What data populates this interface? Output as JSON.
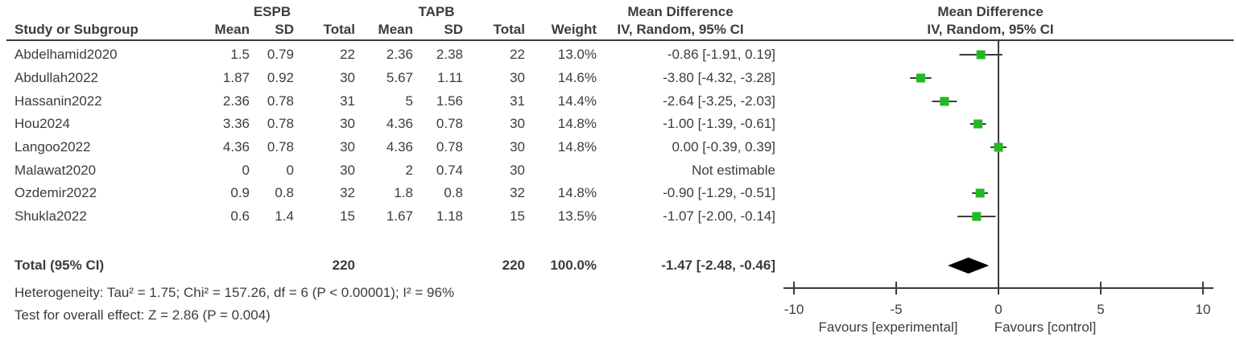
{
  "table": {
    "group_headers": {
      "espb": "ESPB",
      "tapb": "TAPB",
      "md_left": "Mean Difference",
      "md_right": "Mean Difference"
    },
    "col_headers": {
      "study": "Study or Subgroup",
      "mean": "Mean",
      "sd": "SD",
      "total": "Total",
      "weight": "Weight",
      "ci": "IV, Random, 95% CI",
      "ci_right": "IV, Random, 95% CI"
    },
    "rows": [
      {
        "study": "Abdelhamid2020",
        "mean1": "1.5",
        "sd1": "0.79",
        "total1": "22",
        "mean2": "2.36",
        "sd2": "2.38",
        "total2": "22",
        "weight": "13.0%",
        "ci": "-0.86 [-1.91, 0.19]"
      },
      {
        "study": "Abdullah2022",
        "mean1": "1.87",
        "sd1": "0.92",
        "total1": "30",
        "mean2": "5.67",
        "sd2": "1.11",
        "total2": "30",
        "weight": "14.6%",
        "ci": "-3.80 [-4.32, -3.28]"
      },
      {
        "study": "Hassanin2022",
        "mean1": "2.36",
        "sd1": "0.78",
        "total1": "31",
        "mean2": "5",
        "sd2": "1.56",
        "total2": "31",
        "weight": "14.4%",
        "ci": "-2.64 [-3.25, -2.03]"
      },
      {
        "study": "Hou2024",
        "mean1": "3.36",
        "sd1": "0.78",
        "total1": "30",
        "mean2": "4.36",
        "sd2": "0.78",
        "total2": "30",
        "weight": "14.8%",
        "ci": "-1.00 [-1.39, -0.61]"
      },
      {
        "study": "Langoo2022",
        "mean1": "4.36",
        "sd1": "0.78",
        "total1": "30",
        "mean2": "4.36",
        "sd2": "0.78",
        "total2": "30",
        "weight": "14.8%",
        "ci": "0.00 [-0.39, 0.39]"
      },
      {
        "study": "Malawat2020",
        "mean1": "0",
        "sd1": "0",
        "total1": "30",
        "mean2": "2",
        "sd2": "0.74",
        "total2": "30",
        "weight": "",
        "ci": "Not estimable"
      },
      {
        "study": "Ozdemir2022",
        "mean1": "0.9",
        "sd1": "0.8",
        "total1": "32",
        "mean2": "1.8",
        "sd2": "0.8",
        "total2": "32",
        "weight": "14.8%",
        "ci": "-0.90 [-1.29, -0.51]"
      },
      {
        "study": "Shukla2022",
        "mean1": "0.6",
        "sd1": "1.4",
        "total1": "15",
        "mean2": "1.67",
        "sd2": "1.18",
        "total2": "15",
        "weight": "13.5%",
        "ci": "-1.07 [-2.00, -0.14]"
      }
    ],
    "total_row": {
      "label": "Total (95% CI)",
      "total1": "220",
      "total2": "220",
      "weight": "100.0%",
      "ci": "-1.47 [-2.48, -0.46]"
    },
    "heterogeneity": "Heterogeneity: Tau² = 1.75; Chi² = 157.26, df = 6 (P < 0.00001); I² = 96%",
    "overall_effect": "Test for overall effect: Z = 2.86 (P = 0.004)"
  },
  "chart_data": {
    "type": "forest",
    "effect_measure": "Mean Difference, IV, Random, 95% CI",
    "xlim": [
      -10,
      10
    ],
    "ticks": [
      -10,
      -5,
      0,
      5,
      10
    ],
    "tick_labels": [
      "-10",
      "-5",
      "0",
      "5",
      "10"
    ],
    "studies": [
      {
        "name": "Abdelhamid2020",
        "md": -0.86,
        "lo": -1.91,
        "hi": 0.19,
        "weight_pct": 13.0
      },
      {
        "name": "Abdullah2022",
        "md": -3.8,
        "lo": -4.32,
        "hi": -3.28,
        "weight_pct": 14.6
      },
      {
        "name": "Hassanin2022",
        "md": -2.64,
        "lo": -3.25,
        "hi": -2.03,
        "weight_pct": 14.4
      },
      {
        "name": "Hou2024",
        "md": -1.0,
        "lo": -1.39,
        "hi": -0.61,
        "weight_pct": 14.8
      },
      {
        "name": "Langoo2022",
        "md": 0.0,
        "lo": -0.39,
        "hi": 0.39,
        "weight_pct": 14.8
      },
      {
        "name": "Malawat2020",
        "md": null,
        "lo": null,
        "hi": null,
        "weight_pct": null
      },
      {
        "name": "Ozdemir2022",
        "md": -0.9,
        "lo": -1.29,
        "hi": -0.51,
        "weight_pct": 14.8
      },
      {
        "name": "Shukla2022",
        "md": -1.07,
        "lo": -2.0,
        "hi": -0.14,
        "weight_pct": 13.5
      }
    ],
    "total": {
      "md": -1.47,
      "lo": -2.48,
      "hi": -0.46
    },
    "footer_left": "Favours [experimental]",
    "footer_right": "Favours [control]",
    "colors": {
      "marker": "#23b923",
      "line": "#3c3c3c",
      "diamond": "#000000"
    }
  }
}
